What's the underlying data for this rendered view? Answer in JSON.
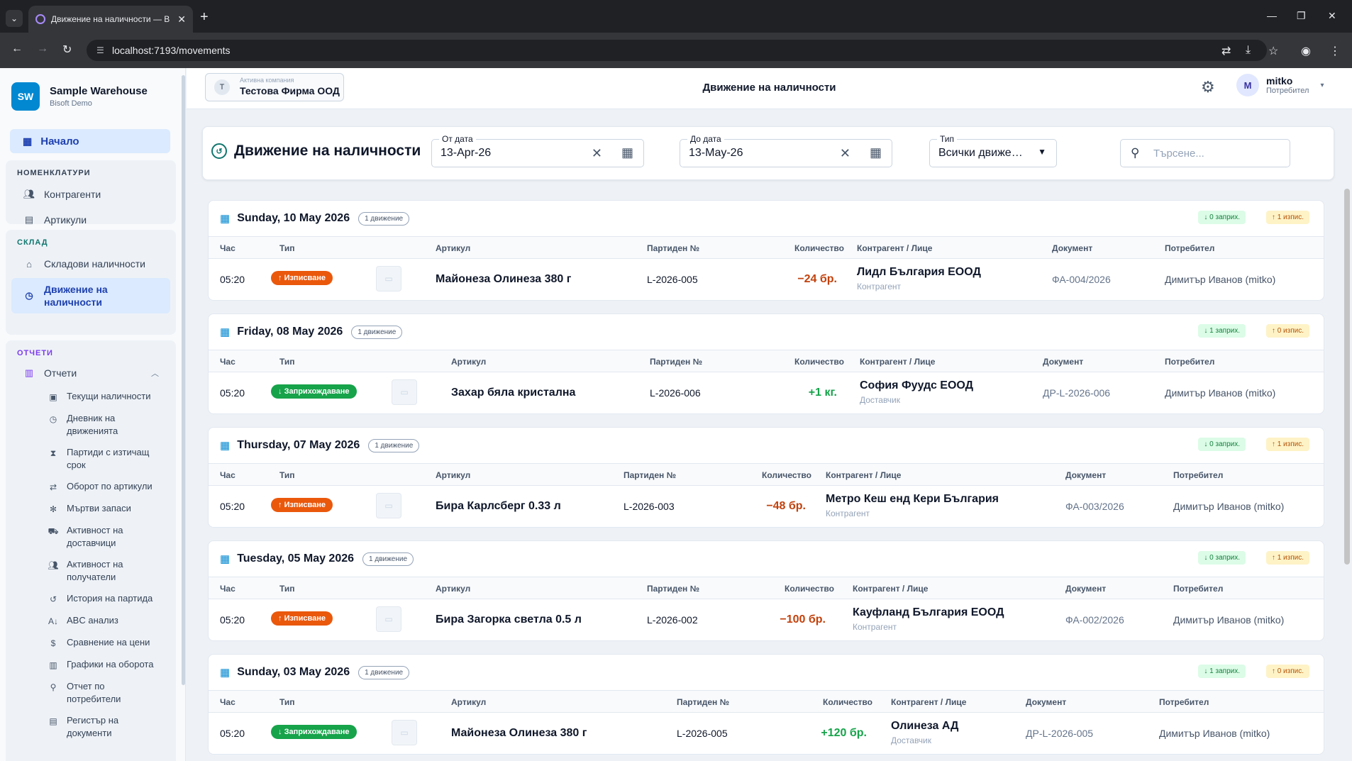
{
  "browser": {
    "tab_title": "Движение на наличности — В",
    "url": "localhost:7193/movements"
  },
  "sidebar": {
    "brand_logo": "SW",
    "brand_name": "Sample Warehouse",
    "brand_sub": "Bisoft Demo",
    "home": "Начало",
    "sections": [
      {
        "title": "НОМЕНКЛАТУРИ",
        "color": "#334155",
        "items": [
          "Контрагенти",
          "Артикули"
        ]
      },
      {
        "title": "СКЛАД",
        "color": "#0f766e",
        "items": [
          "Складови наличности",
          "Движение на наличности"
        ]
      },
      {
        "title": "ОТЧЕТИ",
        "color": "#7c3aed",
        "items": [
          "Отчети"
        ]
      }
    ],
    "reports": [
      "Текущи наличности",
      "Дневник на движенията",
      "Партиди с изтичащ срок",
      "Оборот по артикули",
      "Мъртви запаси",
      "Активност на доставчици",
      "Активност на получатели",
      "История на партида",
      "ABC анализ",
      "Сравнение на цени",
      "Графики на оборота",
      "Отчет по потребители",
      "Регистър на документи"
    ]
  },
  "header": {
    "company_avatar": "T",
    "company_label": "Активна компания",
    "company_name": "Тестова Фирма ООД",
    "title": "Движение на наличности",
    "user_avatar": "M",
    "user_name": "mitko",
    "user_role": "Потребител"
  },
  "filter": {
    "title": "Движение на наличности",
    "from_label": "От дата",
    "from_value": "13-Apr-26",
    "to_label": "До дата",
    "to_value": "13-May-26",
    "type_label": "Тип",
    "type_value": "Всички движе…",
    "search_placeholder": "Търсене..."
  },
  "columns": [
    "Час",
    "Тип",
    "Артикул",
    "Партиден №",
    "Количество",
    "Контрагент / Лице",
    "Документ",
    "Потребител"
  ],
  "groups": [
    {
      "date": "Sunday, 10 May 2026",
      "count": "1 движение",
      "in": "0 заприх.",
      "out": "1 изпис.",
      "row": {
        "time": "05:20",
        "type": "Изписване",
        "kind": "out",
        "article": "Майонеза Олинеза 380 г",
        "lot": "L-2026-005",
        "qty": "−24 бр.",
        "party": "Лидл България ЕООД",
        "party_role": "Контрагент",
        "doc": "ФА-004/2026",
        "user": "Димитър Иванов (mitko)"
      }
    },
    {
      "date": "Friday, 08 May 2026",
      "count": "1 движение",
      "in": "1 заприх.",
      "out": "0 изпис.",
      "row": {
        "time": "05:20",
        "type": "Заприхождаване",
        "kind": "in",
        "article": "Захар бяла кристална",
        "lot": "L-2026-006",
        "qty": "+1 кг.",
        "party": "София Фуудс ЕООД",
        "party_role": "Доставчик",
        "doc": "ДР-L-2026-006",
        "user": "Димитър Иванов (mitko)"
      }
    },
    {
      "date": "Thursday, 07 May 2026",
      "count": "1 движение",
      "in": "0 заприх.",
      "out": "1 изпис.",
      "row": {
        "time": "05:20",
        "type": "Изписване",
        "kind": "out",
        "article": "Бира Карлсберг 0.33 л",
        "lot": "L-2026-003",
        "qty": "−48 бр.",
        "party": "Метро Кеш енд Кери България",
        "party_role": "Контрагент",
        "doc": "ФА-003/2026",
        "user": "Димитър Иванов (mitko)"
      }
    },
    {
      "date": "Tuesday, 05 May 2026",
      "count": "1 движение",
      "in": "0 заприх.",
      "out": "1 изпис.",
      "row": {
        "time": "05:20",
        "type": "Изписване",
        "kind": "out",
        "article": "Бира Загорка светла 0.5 л",
        "lot": "L-2026-002",
        "qty": "−100 бр.",
        "party": "Кауфланд България ЕООД",
        "party_role": "Контрагент",
        "doc": "ФА-002/2026",
        "user": "Димитър Иванов (mitko)"
      }
    },
    {
      "date": "Sunday, 03 May 2026",
      "count": "1 движение",
      "in": "1 заприх.",
      "out": "0 изпис.",
      "row": {
        "time": "05:20",
        "type": "Заприхождаване",
        "kind": "in",
        "article": "Майонеза Олинеза 380 г",
        "lot": "L-2026-005",
        "qty": "+120 бр.",
        "party": "Олинеза АД",
        "party_role": "Доставчик",
        "doc": "ДР-L-2026-005",
        "user": "Димитър Иванов (mitko)"
      }
    }
  ]
}
